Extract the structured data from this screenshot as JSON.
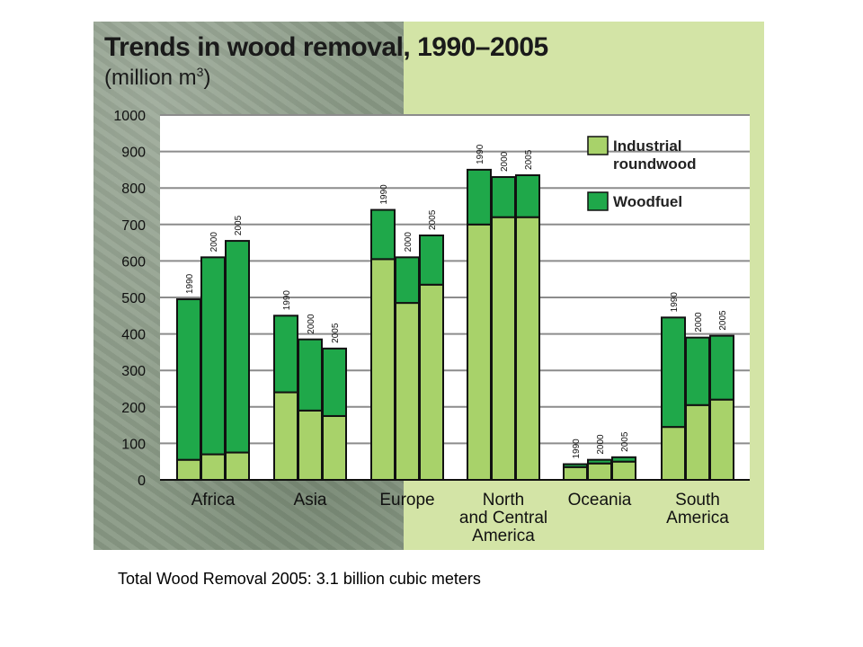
{
  "caption": "Total Wood Removal 2005: 3.1 billion cubic meters",
  "colors": {
    "industrial": "#a8d26a",
    "woodfuel": "#1fa84a",
    "left_bg": "#8a9a86",
    "right_bg": "#d3e4a6"
  },
  "chart_data": {
    "type": "bar",
    "stacked": true,
    "title": "Trends in wood removal, 1990–2005",
    "unit_prefix": "(million m",
    "unit_sup": "3",
    "unit_suffix": ")",
    "ylim": [
      0,
      1000
    ],
    "yticks": [
      "0",
      "100",
      "200",
      "300",
      "400",
      "500",
      "600",
      "700",
      "800",
      "900",
      "1000"
    ],
    "grid": true,
    "legend_position": "top-right",
    "years": [
      "1990",
      "2000",
      "2005"
    ],
    "series": [
      {
        "name": "Industrial roundwood",
        "legend_lines": [
          "Industrial",
          "roundwood"
        ]
      },
      {
        "name": "Woodfuel",
        "legend_lines": [
          "Woodfuel"
        ]
      }
    ],
    "groups": [
      {
        "label_lines": [
          "Africa"
        ],
        "industrial": [
          55,
          70,
          75
        ],
        "woodfuel": [
          440,
          540,
          580
        ]
      },
      {
        "label_lines": [
          "Asia"
        ],
        "industrial": [
          240,
          190,
          175
        ],
        "woodfuel": [
          210,
          195,
          185
        ]
      },
      {
        "label_lines": [
          "Europe"
        ],
        "industrial": [
          605,
          485,
          535
        ],
        "woodfuel": [
          135,
          125,
          135
        ]
      },
      {
        "label_lines": [
          "North",
          "and Central",
          "America"
        ],
        "industrial": [
          700,
          720,
          720
        ],
        "woodfuel": [
          150,
          110,
          115
        ]
      },
      {
        "label_lines": [
          "Oceania"
        ],
        "industrial": [
          35,
          45,
          50
        ],
        "woodfuel": [
          8,
          10,
          12
        ]
      },
      {
        "label_lines": [
          "South",
          "America"
        ],
        "industrial": [
          145,
          205,
          220
        ],
        "woodfuel": [
          300,
          185,
          175
        ]
      }
    ]
  }
}
